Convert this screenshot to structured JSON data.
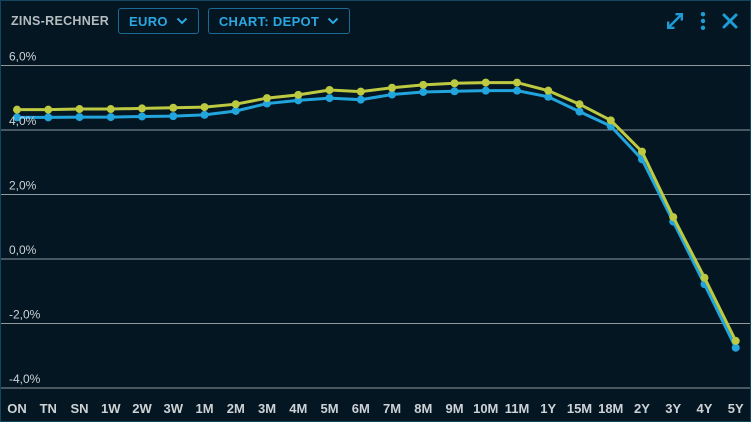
{
  "header": {
    "title": "ZINS-RECHNER",
    "currency_dropdown": {
      "value": "EURO"
    },
    "chart_type_dropdown": {
      "value": "CHART: DEPOT"
    }
  },
  "colors": {
    "background": "#031622",
    "widget_border": "#12455e",
    "accent": "#2ba7e1",
    "icon": "#1f9cd6",
    "grid": "#8e989d",
    "axis_text": "#ccd2d6",
    "title_text": "#b5bcc0",
    "series_yellow": "#bdca41",
    "series_cyan": "#22a5dd"
  },
  "chart_data": {
    "type": "line",
    "title": "",
    "xlabel": "",
    "ylabel": "",
    "grid": "horizontal",
    "legend": "none",
    "ylim": [
      -4.5,
      6.5
    ],
    "categories": [
      "ON",
      "TN",
      "SN",
      "1W",
      "2W",
      "3W",
      "1M",
      "2M",
      "3M",
      "4M",
      "5M",
      "6M",
      "7M",
      "8M",
      "9M",
      "10M",
      "11M",
      "1Y",
      "15M",
      "18M",
      "2Y",
      "3Y",
      "4Y",
      "5Y"
    ],
    "yticks": [
      {
        "value": 6,
        "label": "6,0%"
      },
      {
        "value": 4,
        "label": "4,0%"
      },
      {
        "value": 2,
        "label": "2,0%"
      },
      {
        "value": 0,
        "label": "0,0%"
      },
      {
        "value": -2,
        "label": "-2,0%"
      },
      {
        "value": -4,
        "label": "-4,0%"
      }
    ],
    "series": [
      {
        "name": "series-cyan",
        "color": "#22a5dd",
        "values": [
          4.39,
          4.39,
          4.4,
          4.4,
          4.42,
          4.43,
          4.47,
          4.59,
          4.82,
          4.92,
          4.99,
          4.94,
          5.1,
          5.18,
          5.2,
          5.22,
          5.22,
          5.03,
          4.57,
          4.12,
          3.09,
          1.16,
          -0.78,
          -2.75
        ]
      },
      {
        "name": "series-yellow",
        "color": "#bdca41",
        "values": [
          4.63,
          4.63,
          4.65,
          4.65,
          4.67,
          4.69,
          4.71,
          4.8,
          4.99,
          5.09,
          5.24,
          5.19,
          5.31,
          5.4,
          5.45,
          5.47,
          5.47,
          5.22,
          4.8,
          4.3,
          3.33,
          1.3,
          -0.58,
          -2.54
        ]
      }
    ]
  }
}
